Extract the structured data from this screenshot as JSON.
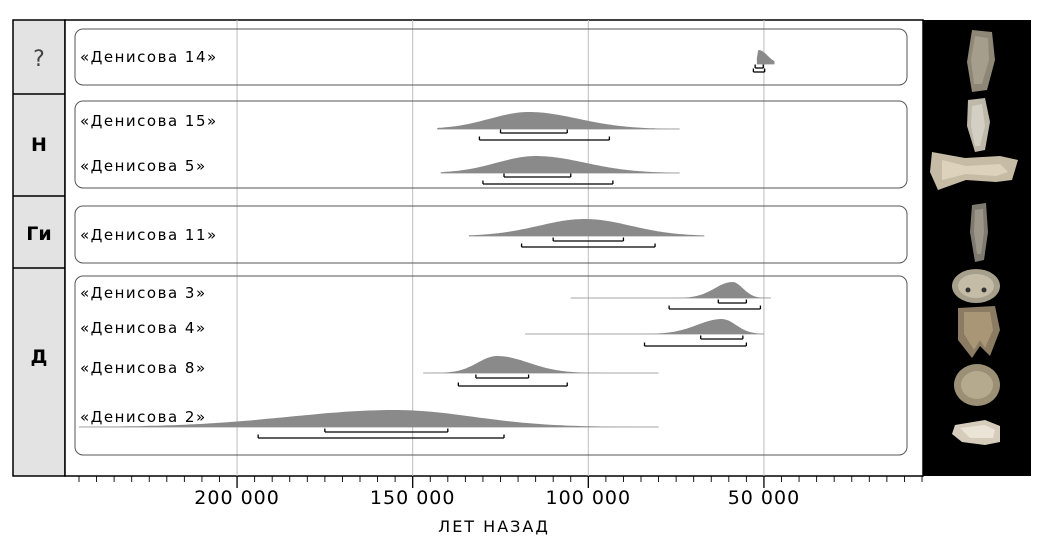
{
  "chart_data": {
    "type": "area",
    "xlabel": "ЛЕТ НАЗАД",
    "xlim": [
      245000,
      5000
    ],
    "x_ticks": [
      200000,
      150000,
      100000,
      50000
    ],
    "x_tick_labels": [
      "200 000",
      "150 000",
      "100 000",
      "50 000"
    ],
    "grid": true,
    "groups": [
      {
        "label": "?",
        "samples": [
          "denisova14"
        ]
      },
      {
        "label": "Н",
        "samples": [
          "denisova15",
          "denisova5"
        ]
      },
      {
        "label": "Ги",
        "samples": [
          "denisova11"
        ]
      },
      {
        "label": "Д",
        "samples": [
          "denisova3",
          "denisova4",
          "denisova8",
          "denisova2"
        ]
      }
    ],
    "samples": {
      "denisova14": {
        "label": "«Денисова 14»",
        "range": [
          47000,
          52000
        ],
        "peak": 51500,
        "spread_left": 400,
        "spread_right": 2500,
        "interval_68": [
          50200,
          52500
        ],
        "interval_95": [
          49800,
          53000
        ]
      },
      "denisova15": {
        "label": "«Денисова 15»",
        "range": [
          143000,
          74000
        ],
        "peak": 117000,
        "spread_left": 11000,
        "spread_right": 14000,
        "interval_68": [
          125000,
          106000
        ],
        "interval_95": [
          131000,
          94000
        ]
      },
      "denisova5": {
        "label": "«Денисова 5»",
        "range": [
          142000,
          74000
        ],
        "peak": 115000,
        "spread_left": 11000,
        "spread_right": 14000,
        "interval_68": [
          124000,
          105000
        ],
        "interval_95": [
          130000,
          93000
        ]
      },
      "denisova11": {
        "label": "«Денисова 11»",
        "range": [
          134000,
          67000
        ],
        "peak": 101000,
        "spread_left": 13000,
        "spread_right": 13000,
        "interval_68": [
          110000,
          90000
        ],
        "interval_95": [
          119000,
          81000
        ]
      },
      "denisova3": {
        "label": "«Денисова 3»",
        "range": [
          105000,
          48000
        ],
        "peak": 59000,
        "spread_left": 5000,
        "spread_right": 3000,
        "interval_68": [
          63000,
          55000
        ],
        "interval_95": [
          77000,
          51000
        ]
      },
      "denisova4": {
        "label": "«Денисова 4»",
        "range": [
          118000,
          50000
        ],
        "peak": 62000,
        "spread_left": 7000,
        "spread_right": 4000,
        "interval_68": [
          68000,
          56000
        ],
        "interval_95": [
          84000,
          55000
        ]
      },
      "denisova8": {
        "label": "«Денисова 8»",
        "range": [
          147000,
          80000
        ],
        "peak": 126000,
        "spread_left": 5500,
        "spread_right": 9000,
        "interval_68": [
          132000,
          117000
        ],
        "interval_95": [
          137000,
          106000
        ]
      },
      "denisova2": {
        "label": "«Денисова 2»",
        "range": [
          245000,
          80000
        ],
        "peak": 155000,
        "spread_left": 30000,
        "spread_right": 22000,
        "interval_68": [
          175000,
          140000
        ],
        "interval_95": [
          194000,
          124000
        ]
      }
    }
  },
  "colors": {
    "distribution": "#8a8a8a",
    "distribution_dark": "#777777",
    "group_column": "#e3e3e3",
    "panel_border": "#555555",
    "grid": "#bdbdbd",
    "photo_background": "#000000"
  },
  "photos": [
    "tooth-fragment-photo",
    "bone-fragment-photo",
    "finger-bone-photo",
    "bone-splinter-photo",
    "molar-photo",
    "molar-side-photo",
    "molar-top-photo",
    "phalanx-photo"
  ]
}
